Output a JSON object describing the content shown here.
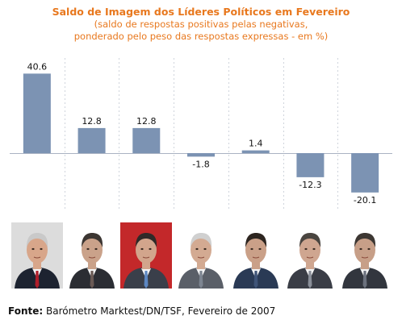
{
  "chart_data": {
    "type": "bar",
    "title": "Saldo de Imagem dos Líderes Políticos em Fevereiro",
    "subtitle_line1": "(saldo de respostas positivas pelas negativas,",
    "subtitle_line2": "ponderado pelo peso das respostas expressas - em %)",
    "categories": [
      "",
      "",
      "",
      "",
      "",
      "",
      ""
    ],
    "values": [
      40.6,
      12.8,
      12.8,
      -1.8,
      1.4,
      -12.3,
      -20.1
    ],
    "value_labels": [
      "40.6",
      "12.8",
      "12.8",
      "-1.8",
      "1.4",
      "-12.3",
      "-20.1"
    ],
    "ylim": [
      -25,
      50
    ],
    "grid": "vertical dashed",
    "bar_color": "#7c93b3"
  },
  "portraits": [
    {
      "icon": "portrait-photo",
      "bg": "#dcdcdc",
      "suit": "#1d2330",
      "skin": "#d8a68a",
      "hair": "#c9c9c9",
      "accent": "#b01e2a"
    },
    {
      "icon": "portrait-photo",
      "bg": "#ffffff",
      "suit": "#2b2d33",
      "skin": "#caa28a",
      "hair": "#3c3632",
      "accent": "#6a5a55"
    },
    {
      "icon": "portrait-photo",
      "bg": "#c3282a",
      "suit": "#3a3f4a",
      "skin": "#d2a58c",
      "hair": "#2f2a28",
      "accent": "#5c87c2"
    },
    {
      "icon": "portrait-photo",
      "bg": "#ffffff",
      "suit": "#5a5f68",
      "skin": "#d3aa92",
      "hair": "#d0d0d0",
      "accent": "#7d8591"
    },
    {
      "icon": "portrait-photo",
      "bg": "#ffffff",
      "suit": "#2a3a55",
      "skin": "#caa088",
      "hair": "#2d2520",
      "accent": "#3f5478"
    },
    {
      "icon": "portrait-photo",
      "bg": "#ffffff",
      "suit": "#3a3d46",
      "skin": "#cfa690",
      "hair": "#4a4540",
      "accent": "#8a8f99"
    },
    {
      "icon": "portrait-photo",
      "bg": "#ffffff",
      "suit": "#32363e",
      "skin": "#c79f88",
      "hair": "#3d3733",
      "accent": "#6b717d"
    }
  ],
  "source": {
    "label": "Fonte:",
    "text": " Barómetro Marktest/DN/TSF, Fevereiro de 2007"
  }
}
